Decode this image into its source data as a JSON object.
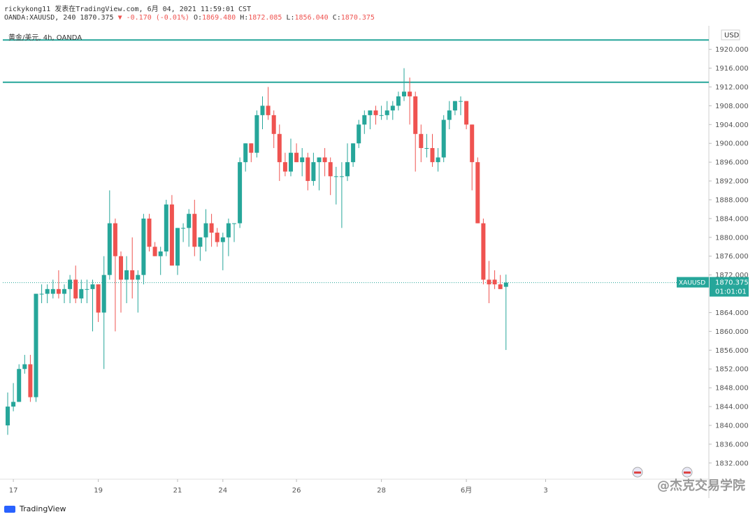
{
  "header": {
    "line1": "rickykong11 发表在TradingView.com, 6月 04, 2021 11:59:01 CST",
    "symbol_line": "OANDA:XAUUSD, 240 1870.375",
    "change": "▼ -0.170 (-0.01%)",
    "o_label": "O:",
    "o_value": "1869.480",
    "h_label": "H:",
    "h_value": "1872.085",
    "l_label": "L:",
    "l_value": "1856.040",
    "c_label": "C:",
    "c_value": "1870.375"
  },
  "legend": "黄金/美元, 4h, OANDA",
  "price_axis": {
    "unit": "USD",
    "ticks": [
      "1920.000",
      "1916.000",
      "1912.000",
      "1908.000",
      "1904.000",
      "1900.000",
      "1896.000",
      "1892.000",
      "1888.000",
      "1884.000",
      "1880.000",
      "1876.000",
      "1872.000",
      "1864.000",
      "1860.000",
      "1856.000",
      "1852.000",
      "1848.000",
      "1844.000",
      "1840.000",
      "1836.000",
      "1832.000"
    ],
    "current_symbol": "XAUUSD",
    "current_price": "1870.375",
    "countdown": "01:01:01"
  },
  "time_axis": {
    "ticks": [
      "17",
      "19",
      "21",
      "24",
      "26",
      "28",
      "6月",
      "3"
    ]
  },
  "footer": {
    "logo_text": "TradingView",
    "brand": "@杰克交易学院"
  },
  "colors": {
    "up": "#26a69a",
    "down": "#ef5350",
    "hline": "#26a69a"
  },
  "chart_data": {
    "type": "candlestick",
    "symbol": "XAUUSD",
    "interval": "4h",
    "ylim": [
      1829,
      1925
    ],
    "horizontal_lines": [
      1922,
      1913
    ],
    "current_price": 1870.375,
    "x_ticks": [
      {
        "label": "17",
        "index": 1
      },
      {
        "label": "19",
        "index": 16
      },
      {
        "label": "21",
        "index": 30
      },
      {
        "label": "24",
        "index": 38
      },
      {
        "label": "26",
        "index": 51
      },
      {
        "label": "28",
        "index": 66
      },
      {
        "label": "6月",
        "index": 81
      },
      {
        "label": "3",
        "index": 95
      }
    ],
    "candles": [
      {
        "o": 1840,
        "h": 1847,
        "l": 1838,
        "c": 1844
      },
      {
        "o": 1844,
        "h": 1849,
        "l": 1843,
        "c": 1845
      },
      {
        "o": 1845,
        "h": 1853,
        "l": 1845,
        "c": 1852
      },
      {
        "o": 1852,
        "h": 1855,
        "l": 1851,
        "c": 1853
      },
      {
        "o": 1853,
        "h": 1855,
        "l": 1845,
        "c": 1846
      },
      {
        "o": 1846,
        "h": 1868,
        "l": 1845,
        "c": 1868
      },
      {
        "o": 1868,
        "h": 1870,
        "l": 1866,
        "c": 1868
      },
      {
        "o": 1868,
        "h": 1870,
        "l": 1866,
        "c": 1869
      },
      {
        "o": 1868,
        "h": 1871,
        "l": 1867,
        "c": 1869
      },
      {
        "o": 1869,
        "h": 1873,
        "l": 1867,
        "c": 1868
      },
      {
        "o": 1868,
        "h": 1870,
        "l": 1866,
        "c": 1869
      },
      {
        "o": 1869,
        "h": 1872,
        "l": 1866,
        "c": 1871
      },
      {
        "o": 1871,
        "h": 1874,
        "l": 1866,
        "c": 1867
      },
      {
        "o": 1867,
        "h": 1871,
        "l": 1866,
        "c": 1869
      },
      {
        "o": 1869,
        "h": 1871,
        "l": 1866,
        "c": 1869
      },
      {
        "o": 1869,
        "h": 1871,
        "l": 1860,
        "c": 1870
      },
      {
        "o": 1870,
        "h": 1870,
        "l": 1862,
        "c": 1864
      },
      {
        "o": 1864,
        "h": 1876,
        "l": 1852,
        "c": 1872
      },
      {
        "o": 1872,
        "h": 1890,
        "l": 1871,
        "c": 1883
      },
      {
        "o": 1883,
        "h": 1884,
        "l": 1860,
        "c": 1876
      },
      {
        "o": 1876,
        "h": 1877,
        "l": 1864,
        "c": 1871
      },
      {
        "o": 1871,
        "h": 1876,
        "l": 1866,
        "c": 1873
      },
      {
        "o": 1873,
        "h": 1880,
        "l": 1867,
        "c": 1871
      },
      {
        "o": 1871,
        "h": 1873,
        "l": 1864,
        "c": 1872
      },
      {
        "o": 1872,
        "h": 1885,
        "l": 1870,
        "c": 1884
      },
      {
        "o": 1884,
        "h": 1885,
        "l": 1877,
        "c": 1878
      },
      {
        "o": 1878,
        "h": 1879,
        "l": 1876,
        "c": 1876
      },
      {
        "o": 1876,
        "h": 1878,
        "l": 1872,
        "c": 1877
      },
      {
        "o": 1877,
        "h": 1888,
        "l": 1876,
        "c": 1887
      },
      {
        "o": 1887,
        "h": 1889,
        "l": 1874,
        "c": 1874
      },
      {
        "o": 1874,
        "h": 1882,
        "l": 1872,
        "c": 1882
      },
      {
        "o": 1882,
        "h": 1883,
        "l": 1879,
        "c": 1882
      },
      {
        "o": 1882,
        "h": 1886,
        "l": 1878,
        "c": 1885
      },
      {
        "o": 1885,
        "h": 1888,
        "l": 1876,
        "c": 1878
      },
      {
        "o": 1878,
        "h": 1880,
        "l": 1875,
        "c": 1880
      },
      {
        "o": 1880,
        "h": 1886,
        "l": 1877,
        "c": 1883
      },
      {
        "o": 1883,
        "h": 1885,
        "l": 1878,
        "c": 1881
      },
      {
        "o": 1881,
        "h": 1882,
        "l": 1878,
        "c": 1879
      },
      {
        "o": 1879,
        "h": 1881,
        "l": 1873,
        "c": 1880
      },
      {
        "o": 1880,
        "h": 1884,
        "l": 1876,
        "c": 1883
      },
      {
        "o": 1883,
        "h": 1883,
        "l": 1879,
        "c": 1883
      },
      {
        "o": 1883,
        "h": 1897,
        "l": 1882,
        "c": 1896
      },
      {
        "o": 1896,
        "h": 1900,
        "l": 1894,
        "c": 1900
      },
      {
        "o": 1900,
        "h": 1900,
        "l": 1896,
        "c": 1898
      },
      {
        "o": 1898,
        "h": 1907,
        "l": 1897,
        "c": 1906
      },
      {
        "o": 1906,
        "h": 1910,
        "l": 1903,
        "c": 1908
      },
      {
        "o": 1908,
        "h": 1912,
        "l": 1905,
        "c": 1906
      },
      {
        "o": 1906,
        "h": 1907,
        "l": 1899,
        "c": 1902
      },
      {
        "o": 1902,
        "h": 1904,
        "l": 1892,
        "c": 1896
      },
      {
        "o": 1896,
        "h": 1898,
        "l": 1893,
        "c": 1894
      },
      {
        "o": 1894,
        "h": 1901,
        "l": 1893,
        "c": 1898
      },
      {
        "o": 1898,
        "h": 1900,
        "l": 1896,
        "c": 1896
      },
      {
        "o": 1896,
        "h": 1899,
        "l": 1893,
        "c": 1897
      },
      {
        "o": 1897,
        "h": 1898,
        "l": 1890,
        "c": 1892
      },
      {
        "o": 1892,
        "h": 1898,
        "l": 1891,
        "c": 1896
      },
      {
        "o": 1896,
        "h": 1897,
        "l": 1890,
        "c": 1897
      },
      {
        "o": 1897,
        "h": 1899,
        "l": 1893,
        "c": 1896
      },
      {
        "o": 1896,
        "h": 1897,
        "l": 1889,
        "c": 1893
      },
      {
        "o": 1893,
        "h": 1895,
        "l": 1887,
        "c": 1893
      },
      {
        "o": 1893,
        "h": 1896,
        "l": 1882,
        "c": 1893
      },
      {
        "o": 1893,
        "h": 1900,
        "l": 1892,
        "c": 1896
      },
      {
        "o": 1896,
        "h": 1900,
        "l": 1895,
        "c": 1900
      },
      {
        "o": 1900,
        "h": 1905,
        "l": 1899,
        "c": 1904
      },
      {
        "o": 1904,
        "h": 1907,
        "l": 1902,
        "c": 1906
      },
      {
        "o": 1906,
        "h": 1907,
        "l": 1903,
        "c": 1907
      },
      {
        "o": 1907,
        "h": 1908,
        "l": 1904,
        "c": 1906
      },
      {
        "o": 1906,
        "h": 1908,
        "l": 1905,
        "c": 1906
      },
      {
        "o": 1906,
        "h": 1909,
        "l": 1905,
        "c": 1907
      },
      {
        "o": 1907,
        "h": 1909,
        "l": 1905,
        "c": 1908
      },
      {
        "o": 1908,
        "h": 1911,
        "l": 1907,
        "c": 1910
      },
      {
        "o": 1910,
        "h": 1916,
        "l": 1909,
        "c": 1911
      },
      {
        "o": 1911,
        "h": 1914,
        "l": 1904,
        "c": 1910
      },
      {
        "o": 1910,
        "h": 1911,
        "l": 1894,
        "c": 1902
      },
      {
        "o": 1902,
        "h": 1904,
        "l": 1896,
        "c": 1899
      },
      {
        "o": 1899,
        "h": 1902,
        "l": 1897,
        "c": 1899
      },
      {
        "o": 1899,
        "h": 1902,
        "l": 1895,
        "c": 1896
      },
      {
        "o": 1896,
        "h": 1899,
        "l": 1894,
        "c": 1897
      },
      {
        "o": 1897,
        "h": 1906,
        "l": 1896,
        "c": 1905
      },
      {
        "o": 1905,
        "h": 1909,
        "l": 1903,
        "c": 1907
      },
      {
        "o": 1907,
        "h": 1909,
        "l": 1906,
        "c": 1909
      },
      {
        "o": 1909,
        "h": 1910,
        "l": 1906,
        "c": 1909
      },
      {
        "o": 1909,
        "h": 1909,
        "l": 1903,
        "c": 1904
      },
      {
        "o": 1904,
        "h": 1904,
        "l": 1890,
        "c": 1896
      },
      {
        "o": 1896,
        "h": 1897,
        "l": 1883,
        "c": 1883
      },
      {
        "o": 1883,
        "h": 1884,
        "l": 1870,
        "c": 1871
      },
      {
        "o": 1871,
        "h": 1875,
        "l": 1866,
        "c": 1870
      },
      {
        "o": 1871,
        "h": 1873,
        "l": 1869,
        "c": 1870
      },
      {
        "o": 1870,
        "h": 1872,
        "l": 1869,
        "c": 1869
      },
      {
        "o": 1869.48,
        "h": 1872.085,
        "l": 1856.04,
        "c": 1870.375
      }
    ]
  }
}
